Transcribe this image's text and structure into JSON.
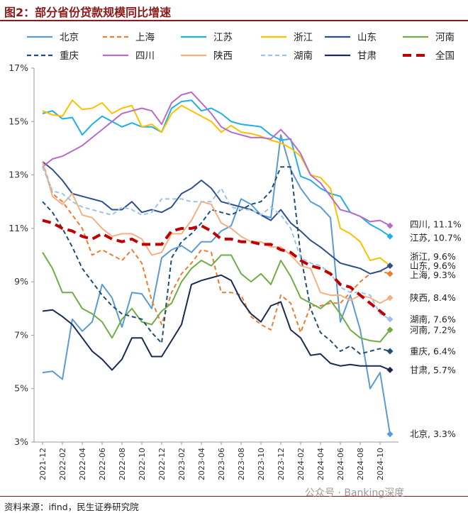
{
  "header": {
    "title": "图2：部分省份贷款规模同比增速"
  },
  "footer": {
    "source": "资料来源：ifind，民生证券研究院",
    "watermark": "公众号 · Banking深度"
  },
  "chart_data": {
    "type": "line",
    "title": "图2：部分省份贷款规模同比增速",
    "xlabel": "",
    "ylabel": "",
    "ylim": [
      3,
      17
    ],
    "yticks": [
      "3%",
      "5%",
      "7%",
      "9%",
      "11%",
      "13%",
      "15%",
      "17%"
    ],
    "ytick_values": [
      3,
      5,
      7,
      9,
      11,
      13,
      15,
      17
    ],
    "x_tick_labels": [
      "2021-12",
      "2022-02",
      "2022-04",
      "2022-06",
      "2022-08",
      "2022-10",
      "2022-12",
      "2023-02",
      "2023-04",
      "2023-06",
      "2023-08",
      "2023-10",
      "2023-12",
      "2024-02",
      "2024-04",
      "2024-06",
      "2024-08",
      "2024-10"
    ],
    "grid": false,
    "legend_position": "top",
    "categories": [
      "2021-12",
      "2022-01",
      "2022-02",
      "2022-03",
      "2022-04",
      "2022-05",
      "2022-06",
      "2022-07",
      "2022-08",
      "2022-09",
      "2022-10",
      "2022-11",
      "2022-12",
      "2023-01",
      "2023-02",
      "2023-03",
      "2023-04",
      "2023-05",
      "2023-06",
      "2023-07",
      "2023-08",
      "2023-09",
      "2023-10",
      "2023-11",
      "2023-12",
      "2024-01",
      "2024-02",
      "2024-03",
      "2024-04",
      "2024-05",
      "2024-06",
      "2024-07",
      "2024-08",
      "2024-09",
      "2024-10",
      "2024-11"
    ],
    "series": [
      {
        "name": "北京",
        "color": "#5b9bd5",
        "dash": "solid",
        "width": 2,
        "end_label": "北京, 3.3%",
        "label_y": 3.3,
        "values": [
          5.6,
          5.65,
          5.35,
          7.6,
          7.15,
          7.5,
          8.9,
          8.4,
          7.3,
          8.6,
          8.55,
          8.0,
          9.9,
          10.2,
          10.35,
          10.1,
          10.5,
          10.5,
          10.9,
          11.1,
          12.1,
          11.9,
          11.5,
          11.4,
          14.5,
          13.2,
          12.5,
          12.0,
          11.8,
          11.4,
          7.5,
          8.5,
          7.2,
          5.0,
          5.6,
          3.3
        ]
      },
      {
        "name": "上海",
        "color": "#ed7d31",
        "dash": "dashed",
        "width": 2,
        "end_label": "上海, 9.3%",
        "label_y": 9.25,
        "values": [
          13.5,
          12.3,
          12.0,
          11.5,
          11.0,
          10.0,
          10.2,
          10.0,
          9.8,
          10.2,
          9.7,
          8.3,
          7.4,
          8.6,
          9.3,
          9.7,
          10.2,
          10.1,
          8.6,
          8.6,
          8.5,
          7.7,
          7.4,
          7.2,
          8.5,
          8.2,
          7.1,
          8.1,
          8.1,
          8.2,
          8.2,
          8.6,
          9.0,
          9.3,
          9.4,
          9.3
        ]
      },
      {
        "name": "江苏",
        "color": "#1fb0e6",
        "dash": "solid",
        "width": 2,
        "end_label": "江苏, 10.7%",
        "label_y": 10.65,
        "values": [
          15.3,
          15.4,
          15.1,
          15.15,
          14.5,
          14.9,
          15.2,
          15.0,
          14.8,
          14.95,
          14.8,
          14.8,
          14.6,
          15.5,
          15.75,
          15.8,
          15.4,
          15.5,
          15.3,
          15.0,
          14.9,
          14.85,
          14.8,
          14.5,
          14.3,
          14.35,
          12.95,
          12.8,
          12.5,
          12.3,
          12.2,
          11.6,
          11.45,
          11.15,
          10.95,
          10.7
        ]
      },
      {
        "name": "浙江",
        "color": "#ffc000",
        "dash": "solid",
        "width": 2,
        "end_label": "浙江, 9.6%",
        "label_y": 9.95,
        "values": [
          15.4,
          15.25,
          15.2,
          15.8,
          15.45,
          15.5,
          15.7,
          15.3,
          15.5,
          15.6,
          14.8,
          14.9,
          14.6,
          15.3,
          15.6,
          15.4,
          15.2,
          15.0,
          14.6,
          14.85,
          14.6,
          14.55,
          14.45,
          14.3,
          14.2,
          14.0,
          13.7,
          13.0,
          12.9,
          12.5,
          11.0,
          10.8,
          10.5,
          9.8,
          9.9,
          9.6
        ]
      },
      {
        "name": "山东",
        "color": "#2e4f8f",
        "dash": "solid",
        "width": 2,
        "end_label": "山东, 9.6%",
        "label_y": 9.6,
        "values": [
          13.5,
          13.2,
          12.8,
          12.3,
          12.2,
          12.1,
          12.0,
          11.7,
          11.7,
          12.0,
          11.6,
          11.7,
          11.6,
          11.8,
          12.3,
          12.5,
          12.8,
          12.5,
          12.0,
          11.9,
          11.8,
          11.7,
          11.5,
          11.3,
          11.7,
          11.2,
          10.9,
          10.55,
          10.3,
          10.0,
          9.7,
          9.6,
          9.5,
          9.3,
          9.4,
          9.6
        ]
      },
      {
        "name": "河南",
        "color": "#70ad47",
        "dash": "solid",
        "width": 2,
        "end_label": "河南, 7.2%",
        "label_y": 7.2,
        "values": [
          10.1,
          9.5,
          8.6,
          8.6,
          8.0,
          7.8,
          7.5,
          6.9,
          7.6,
          8.0,
          7.5,
          7.4,
          7.9,
          8.2,
          9.0,
          9.5,
          9.8,
          9.6,
          10.0,
          10.0,
          9.3,
          9.0,
          9.3,
          8.9,
          9.8,
          9.2,
          8.4,
          8.2,
          8.0,
          8.3,
          7.8,
          7.2,
          6.9,
          6.8,
          6.75,
          7.2
        ]
      },
      {
        "name": "重庆",
        "color": "#1f4e79",
        "dash": "dashed",
        "width": 2,
        "end_label": "重庆, 6.4%",
        "label_y": 6.4,
        "values": [
          12.0,
          11.6,
          11.0,
          10.3,
          9.5,
          9.0,
          8.5,
          8.1,
          7.8,
          7.7,
          7.6,
          7.1,
          6.7,
          9.9,
          10.5,
          10.8,
          11.2,
          11.7,
          11.6,
          11.5,
          11.7,
          11.9,
          12.0,
          12.4,
          13.3,
          13.3,
          10.0,
          8.0,
          7.1,
          6.8,
          6.4,
          6.6,
          6.3,
          6.4,
          6.5,
          6.4
        ]
      },
      {
        "name": "四川",
        "color": "#b86cc8",
        "dash": "solid",
        "width": 2,
        "end_label": "四川, 11.1%",
        "label_y": 11.15,
        "values": [
          13.3,
          13.6,
          13.7,
          13.9,
          14.1,
          14.4,
          14.7,
          15.0,
          15.3,
          15.4,
          15.5,
          15.4,
          14.9,
          15.7,
          16.0,
          16.1,
          15.7,
          15.3,
          14.8,
          14.6,
          14.5,
          14.4,
          14.4,
          14.35,
          14.7,
          14.3,
          13.8,
          13.0,
          12.7,
          12.2,
          11.7,
          11.6,
          11.45,
          11.25,
          11.3,
          11.1
        ]
      },
      {
        "name": "陕西",
        "color": "#f4b183",
        "dash": "solid",
        "width": 2,
        "end_label": "陕西, 8.4%",
        "label_y": 8.4,
        "values": [
          13.5,
          12.2,
          11.9,
          12.3,
          11.5,
          11.4,
          11.0,
          10.7,
          10.8,
          10.8,
          10.6,
          10.0,
          10.1,
          10.8,
          10.8,
          11.3,
          12.0,
          11.9,
          11.2,
          11.0,
          10.7,
          10.5,
          10.5,
          10.3,
          10.3,
          10.0,
          9.6,
          9.5,
          8.6,
          8.5,
          8.5,
          8.3,
          8.5,
          8.4,
          8.2,
          8.4
        ]
      },
      {
        "name": "湖南",
        "color": "#9dc3e6",
        "dash": "dashed",
        "width": 2,
        "end_label": "湖南, 7.6%",
        "label_y": 7.6,
        "values": [
          13.3,
          12.4,
          12.3,
          12.0,
          11.8,
          11.7,
          11.6,
          11.5,
          11.8,
          11.7,
          11.5,
          11.6,
          12.1,
          12.1,
          12.1,
          12.0,
          12.0,
          12.0,
          12.5,
          11.8,
          11.7,
          11.7,
          11.5,
          11.8,
          11.5,
          11.0,
          9.9,
          9.7,
          9.6,
          9.3,
          8.8,
          8.6,
          8.6,
          8.5,
          7.8,
          7.6
        ]
      },
      {
        "name": "甘肃",
        "color": "#1a2a55",
        "dash": "solid",
        "width": 2,
        "end_label": "甘肃, 5.7%",
        "label_y": 5.7,
        "values": [
          7.9,
          7.95,
          7.7,
          7.4,
          6.9,
          6.4,
          6.1,
          5.7,
          6.1,
          6.9,
          6.9,
          6.2,
          6.2,
          6.8,
          7.4,
          8.9,
          9.05,
          9.15,
          9.25,
          9.05,
          8.3,
          7.8,
          7.5,
          8.1,
          8.25,
          7.2,
          6.9,
          6.25,
          6.3,
          5.95,
          5.85,
          5.9,
          5.85,
          5.85,
          5.85,
          5.7
        ]
      },
      {
        "name": "全国",
        "color": "#c00000",
        "dash": "bolddash",
        "width": 4,
        "end_label": "",
        "label_y": null,
        "values": [
          11.3,
          11.2,
          11.0,
          10.9,
          10.7,
          10.6,
          10.8,
          10.6,
          10.5,
          10.6,
          10.4,
          10.4,
          10.4,
          10.9,
          11.0,
          11.0,
          11.1,
          10.9,
          10.6,
          10.6,
          10.5,
          10.5,
          10.4,
          10.4,
          10.2,
          10.1,
          9.8,
          9.6,
          9.5,
          9.3,
          8.9,
          8.8,
          8.5,
          8.2,
          7.9,
          7.6
        ]
      }
    ]
  }
}
